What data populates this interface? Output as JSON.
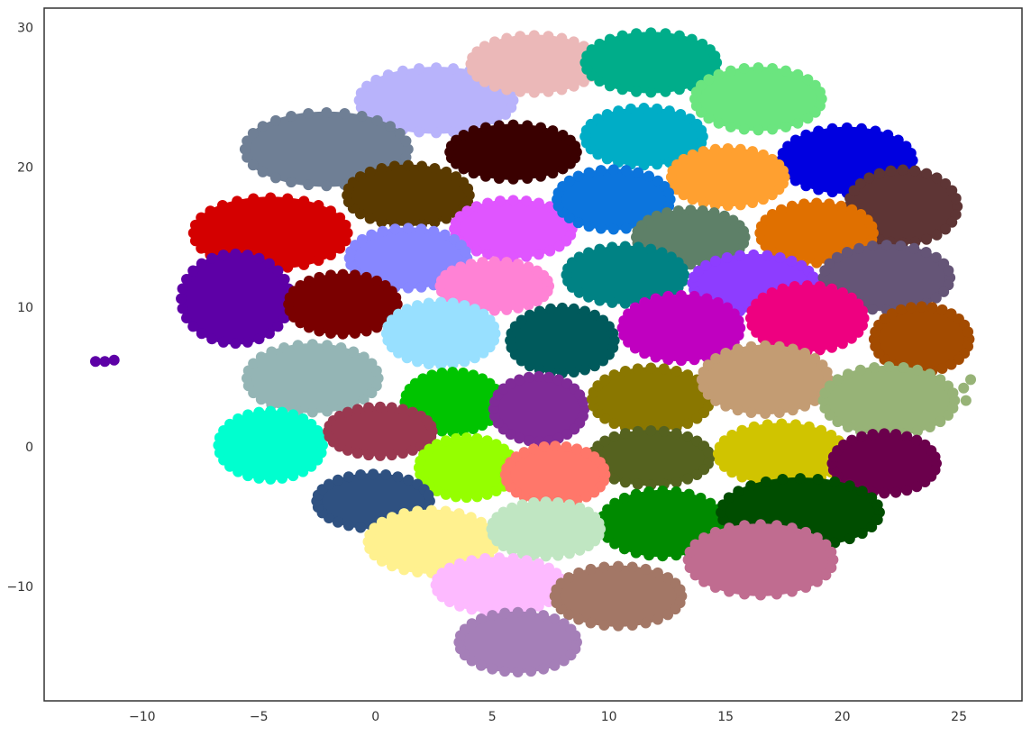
{
  "chart_data": {
    "type": "scatter",
    "title": "",
    "xlabel": "",
    "ylabel": "",
    "xlim": [
      -14.2,
      27.7
    ],
    "ylim": [
      -18.2,
      31.4
    ],
    "grid": false,
    "legend": "none",
    "xticks": [
      -10,
      -5,
      0,
      5,
      10,
      15,
      20,
      25
    ],
    "yticks": [
      -10,
      0,
      10,
      20,
      30
    ],
    "xtick_labels": [
      "−10",
      "−5",
      "0",
      "5",
      "10",
      "15",
      "20",
      "25"
    ],
    "ytick_labels": [
      "−10",
      "0",
      "10",
      "20",
      "30"
    ],
    "clusters": [
      {
        "color": "#b8b3fb",
        "cx": 2.6,
        "cy": 24.8,
        "rx": 3.4,
        "ry": 2.4
      },
      {
        "color": "#ebb8b8",
        "cx": 6.8,
        "cy": 27.4,
        "rx": 2.8,
        "ry": 2.1
      },
      {
        "color": "#00ad8a",
        "cx": 11.8,
        "cy": 27.5,
        "rx": 2.9,
        "ry": 2.2
      },
      {
        "color": "#6be57f",
        "cx": 16.4,
        "cy": 24.9,
        "rx": 2.8,
        "ry": 2.3
      },
      {
        "color": "#6f7f95",
        "cx": -2.1,
        "cy": 21.3,
        "rx": 3.6,
        "ry": 2.7
      },
      {
        "color": "#3a0000",
        "cx": 5.9,
        "cy": 21.1,
        "rx": 2.8,
        "ry": 2.0
      },
      {
        "color": "#00adc6",
        "cx": 11.5,
        "cy": 22.2,
        "rx": 2.6,
        "ry": 2.1
      },
      {
        "color": "#0000e0",
        "cx": 20.2,
        "cy": 20.5,
        "rx": 2.9,
        "ry": 2.4
      },
      {
        "color": "#ffa030",
        "cx": 15.1,
        "cy": 19.3,
        "rx": 2.5,
        "ry": 2.1
      },
      {
        "color": "#5a3a00",
        "cx": 1.4,
        "cy": 18.0,
        "rx": 2.7,
        "ry": 2.2
      },
      {
        "color": "#d40000",
        "cx": -4.5,
        "cy": 15.3,
        "rx": 3.4,
        "ry": 2.6
      },
      {
        "color": "#e055ff",
        "cx": 5.9,
        "cy": 15.6,
        "rx": 2.6,
        "ry": 2.1
      },
      {
        "color": "#0c75dd",
        "cx": 10.2,
        "cy": 17.7,
        "rx": 2.5,
        "ry": 2.2
      },
      {
        "color": "#5e3535",
        "cx": 22.6,
        "cy": 17.2,
        "rx": 2.4,
        "ry": 2.7
      },
      {
        "color": "#5e8068",
        "cx": 13.5,
        "cy": 15.0,
        "rx": 2.4,
        "ry": 2.0
      },
      {
        "color": "#e07000",
        "cx": 18.9,
        "cy": 15.3,
        "rx": 2.5,
        "ry": 2.2
      },
      {
        "color": "#8787ff",
        "cx": 1.4,
        "cy": 13.5,
        "rx": 2.6,
        "ry": 2.2
      },
      {
        "color": "#5d00a6",
        "cx": -6.0,
        "cy": 10.6,
        "rx": 2.4,
        "ry": 3.3
      },
      {
        "color": "#ff82d5",
        "cx": 5.1,
        "cy": 11.5,
        "rx": 2.4,
        "ry": 1.8
      },
      {
        "color": "#008284",
        "cx": 10.7,
        "cy": 12.3,
        "rx": 2.6,
        "ry": 2.1
      },
      {
        "color": "#8d3dff",
        "cx": 16.2,
        "cy": 11.7,
        "rx": 2.7,
        "ry": 2.1
      },
      {
        "color": "#655577",
        "cx": 21.9,
        "cy": 12.1,
        "rx": 2.8,
        "ry": 2.4
      },
      {
        "color": "#7a0000",
        "cx": -1.4,
        "cy": 10.2,
        "rx": 2.4,
        "ry": 2.2
      },
      {
        "color": "#98e0ff",
        "cx": 2.8,
        "cy": 8.1,
        "rx": 2.4,
        "ry": 2.3
      },
      {
        "color": "#005a5c",
        "cx": 8.0,
        "cy": 7.6,
        "rx": 2.3,
        "ry": 2.4
      },
      {
        "color": "#c000c0",
        "cx": 13.1,
        "cy": 8.5,
        "rx": 2.6,
        "ry": 2.4
      },
      {
        "color": "#ee0080",
        "cx": 18.5,
        "cy": 9.2,
        "rx": 2.5,
        "ry": 2.4
      },
      {
        "color": "#a34b00",
        "cx": 23.4,
        "cy": 7.7,
        "rx": 2.1,
        "ry": 2.4
      },
      {
        "color": "#94b5b5",
        "cx": -2.7,
        "cy": 4.9,
        "rx": 2.9,
        "ry": 2.5
      },
      {
        "color": "#00c400",
        "cx": 3.3,
        "cy": 3.2,
        "rx": 2.1,
        "ry": 2.2
      },
      {
        "color": "#802b98",
        "cx": 7.0,
        "cy": 2.7,
        "rx": 2.0,
        "ry": 2.4
      },
      {
        "color": "#8a7700",
        "cx": 11.8,
        "cy": 3.4,
        "rx": 2.6,
        "ry": 2.3
      },
      {
        "color": "#c39c73",
        "cx": 16.7,
        "cy": 4.8,
        "rx": 2.8,
        "ry": 2.5
      },
      {
        "color": "#97b377",
        "cx": 22.0,
        "cy": 3.3,
        "rx": 2.9,
        "ry": 2.5
      },
      {
        "color": "#00ffcf",
        "cx": -4.5,
        "cy": 0.1,
        "rx": 2.3,
        "ry": 2.5
      },
      {
        "color": "#9a3850",
        "cx": 0.2,
        "cy": 1.1,
        "rx": 2.3,
        "ry": 1.8
      },
      {
        "color": "#55621f",
        "cx": 11.8,
        "cy": -0.8,
        "rx": 2.6,
        "ry": 2.0
      },
      {
        "color": "#d0c400",
        "cx": 17.4,
        "cy": -0.5,
        "rx": 2.8,
        "ry": 2.2
      },
      {
        "color": "#6b004c",
        "cx": 21.8,
        "cy": -1.2,
        "rx": 2.3,
        "ry": 2.2
      },
      {
        "color": "#95ff00",
        "cx": 3.9,
        "cy": -1.5,
        "rx": 2.1,
        "ry": 2.2
      },
      {
        "color": "#ff776a",
        "cx": 7.7,
        "cy": -2.0,
        "rx": 2.2,
        "ry": 2.1
      },
      {
        "color": "#2f5181",
        "cx": -0.1,
        "cy": -3.9,
        "rx": 2.5,
        "ry": 2.0
      },
      {
        "color": "#008a00",
        "cx": 12.3,
        "cy": -5.5,
        "rx": 2.7,
        "ry": 2.4
      },
      {
        "color": "#004d00",
        "cx": 18.2,
        "cy": -4.7,
        "rx": 3.5,
        "ry": 2.5
      },
      {
        "color": "#fff18f",
        "cx": 2.4,
        "cy": -6.8,
        "rx": 2.8,
        "ry": 2.3
      },
      {
        "color": "#c0e6c2",
        "cx": 7.3,
        "cy": -5.9,
        "rx": 2.4,
        "ry": 2.0
      },
      {
        "color": "#c06c90",
        "cx": 16.5,
        "cy": -8.1,
        "rx": 3.2,
        "ry": 2.6
      },
      {
        "color": "#fdbaff",
        "cx": 5.3,
        "cy": -9.9,
        "rx": 2.8,
        "ry": 2.0
      },
      {
        "color": "#a37766",
        "cx": 10.4,
        "cy": -10.7,
        "rx": 2.8,
        "ry": 2.2
      },
      {
        "color": "#a57fb8",
        "cx": 6.1,
        "cy": -14.0,
        "rx": 2.6,
        "ry": 2.2
      }
    ],
    "outlier_points": [
      {
        "color": "#5d00a6",
        "x": -12.0,
        "y": 6.1
      },
      {
        "color": "#5d00a6",
        "x": -11.6,
        "y": 6.1
      },
      {
        "color": "#5d00a6",
        "x": -11.2,
        "y": 6.2
      },
      {
        "color": "#97b377",
        "x": 25.5,
        "y": 4.8
      },
      {
        "color": "#97b377",
        "x": 25.2,
        "y": 4.2
      },
      {
        "color": "#97b377",
        "x": 25.3,
        "y": 3.3
      }
    ]
  }
}
